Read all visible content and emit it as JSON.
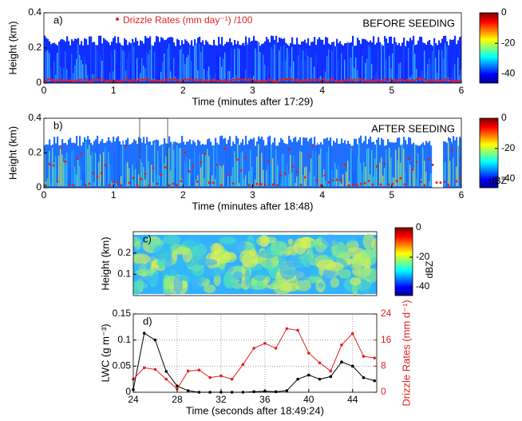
{
  "chart_data": [
    {
      "type": "image",
      "label": "a)",
      "annotation": "BEFORE SEEDING",
      "legend_text": "Drizzle Rates (mm day⁻¹) /100",
      "legend_color": "#e02020",
      "xlabel": "Time (minutes after 17:29)",
      "ylabel": "Height (km)",
      "xlim": [
        0,
        6
      ],
      "xticks": [
        0,
        1,
        2,
        3,
        4,
        5,
        6
      ],
      "ylim": [
        0,
        0.4
      ],
      "yticks": [
        0,
        0.2,
        0.4
      ],
      "clim": [
        -46,
        0
      ],
      "cticks": [
        0,
        -20,
        -40
      ]
    },
    {
      "type": "image",
      "label": "b)",
      "annotation": "AFTER SEEDING",
      "xlabel": "Time (minutes after 18:48)",
      "ylabel": "Height (km)",
      "xlim": [
        0,
        6
      ],
      "xticks": [
        0,
        1,
        2,
        3,
        4,
        5,
        6
      ],
      "ylim": [
        0,
        0.4
      ],
      "yticks": [
        0,
        0.2,
        0.4
      ],
      "clim": [
        -46,
        0
      ],
      "cticks": [
        0,
        -20,
        -40
      ],
      "clabel": "dBZ"
    },
    {
      "type": "image",
      "label": "c)",
      "ylabel": "Height (km)",
      "ylim": [
        0,
        0.3
      ],
      "yticks": [
        0.1,
        0.2
      ],
      "clim": [
        -46,
        0
      ],
      "cticks": [
        0,
        -20,
        -40
      ],
      "clabel": "dBZ"
    },
    {
      "type": "line",
      "label": "d)",
      "xlabel": "Time (seconds after 18:49:24)",
      "ylabel": "LWC (g m⁻³)",
      "y2label": "Drizzle Rates (mm d⁻¹)",
      "x": [
        24,
        25,
        26,
        27,
        28,
        29,
        30,
        31,
        32,
        33,
        34,
        35,
        36,
        37,
        38,
        39,
        40,
        41,
        42,
        43,
        44,
        45,
        46
      ],
      "xlim": [
        24,
        46.2
      ],
      "xticks": [
        24,
        28,
        32,
        36,
        40,
        44
      ],
      "ylim": [
        0,
        0.15
      ],
      "yticks": [
        0,
        0.05,
        0.1,
        0.15
      ],
      "y2lim": [
        0,
        24
      ],
      "y2ticks": [
        0,
        8,
        16,
        24
      ],
      "grid": true,
      "series": [
        {
          "color": "#000000",
          "values": [
            0.005,
            0.113,
            0.1,
            0.04,
            0.012,
            0.003,
            0,
            0,
            0,
            0,
            0,
            0.001,
            0.002,
            0.001,
            0.003,
            0.025,
            0.033,
            0.025,
            0.03,
            0.058,
            0.05,
            0.028,
            0.022
          ]
        },
        {
          "color": "#e02020",
          "axis": "y2",
          "values": [
            4,
            7.5,
            7,
            4,
            1,
            6.5,
            6.8,
            4.5,
            5,
            4,
            8.5,
            13.5,
            15,
            13.5,
            19.5,
            19,
            12,
            9,
            6.5,
            14.5,
            18,
            11,
            10.5
          ]
        }
      ]
    }
  ]
}
